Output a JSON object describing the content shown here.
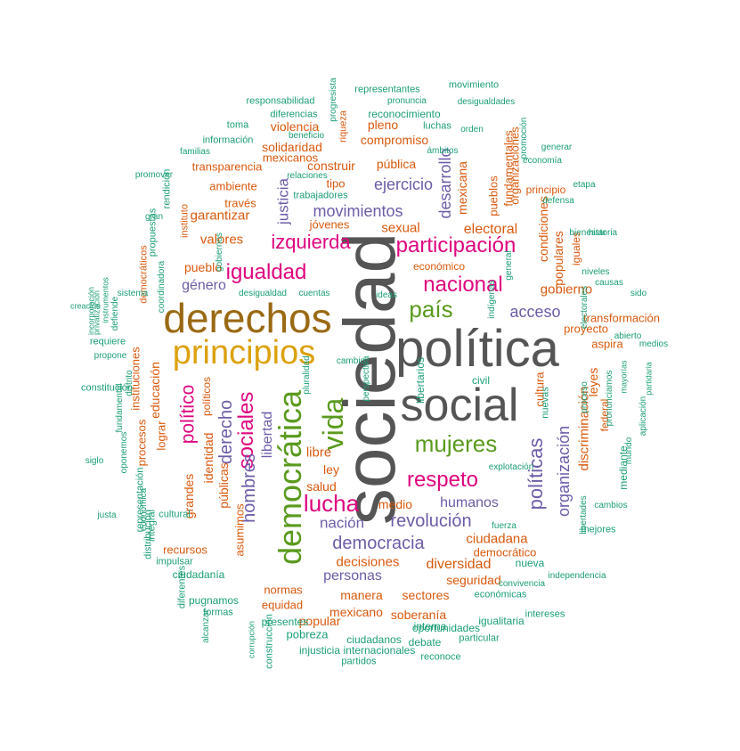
{
  "palette": {
    "dark": "#555555",
    "brown": "#9a6914",
    "gold": "#dca10d",
    "green": "#5a9a1e",
    "magenta": "#df057f",
    "purple": "#6e5ca8",
    "orange": "#d9590d",
    "teal": "#1b9e77"
  },
  "words": [
    {
      "t": "sociedad",
      "c": "dark",
      "r": 1
    },
    {
      "t": "política",
      "c": "dark",
      "r": 0
    },
    {
      "t": "social",
      "c": "dark",
      "r": 0
    },
    {
      "t": "derechos",
      "c": "brown",
      "r": 0
    },
    {
      "t": "principios",
      "c": "gold",
      "r": 0
    },
    {
      "t": "democrática",
      "c": "green",
      "r": 1
    },
    {
      "t": "vida",
      "c": "green",
      "r": 1
    },
    {
      "t": "mujeres",
      "c": "green",
      "r": 0
    },
    {
      "t": "país",
      "c": "green",
      "r": 0
    },
    {
      "t": "nacional",
      "c": "magenta",
      "r": 0
    },
    {
      "t": "igualdad",
      "c": "magenta",
      "r": 0
    },
    {
      "t": "izquierda",
      "c": "magenta",
      "r": 0
    },
    {
      "t": "participación",
      "c": "magenta",
      "r": 0
    },
    {
      "t": "respeto",
      "c": "magenta",
      "r": 0
    },
    {
      "t": "lucha",
      "c": "magenta",
      "r": 0
    },
    {
      "t": "sociales",
      "c": "magenta",
      "r": 1
    },
    {
      "t": "político",
      "c": "magenta",
      "r": 1
    },
    {
      "t": "políticas",
      "c": "purple",
      "r": 1
    },
    {
      "t": "revolución",
      "c": "purple",
      "r": 0
    },
    {
      "t": "democracia",
      "c": "purple",
      "r": 0
    },
    {
      "t": "derecho",
      "c": "purple",
      "r": 1
    },
    {
      "t": "hombres",
      "c": "purple",
      "r": 1
    },
    {
      "t": "movimientos",
      "c": "purple",
      "r": 0
    },
    {
      "t": "ejercicio",
      "c": "purple",
      "r": 0
    },
    {
      "t": "desarrollo",
      "c": "purple",
      "r": 1
    },
    {
      "t": "justicia",
      "c": "purple",
      "r": 1
    },
    {
      "t": "acceso",
      "c": "purple",
      "r": 0
    },
    {
      "t": "género",
      "c": "purple",
      "r": 0
    },
    {
      "t": "nación",
      "c": "purple",
      "r": 0
    },
    {
      "t": "humanos",
      "c": "purple",
      "r": 0
    },
    {
      "t": "personas",
      "c": "purple",
      "r": 0
    },
    {
      "t": "organización",
      "c": "purple",
      "r": 1
    },
    {
      "t": "libertad",
      "c": "purple",
      "r": 1
    },
    {
      "t": "diversidad",
      "c": "orange",
      "r": 0
    },
    {
      "t": "decisiones",
      "c": "orange",
      "r": 0
    },
    {
      "t": "ciudadana",
      "c": "orange",
      "r": 0
    },
    {
      "t": "discriminación",
      "c": "orange",
      "r": 1
    },
    {
      "t": "gobierno",
      "c": "orange",
      "r": 0
    },
    {
      "t": "electoral",
      "c": "orange",
      "r": 0
    },
    {
      "t": "sexual",
      "c": "orange",
      "r": 0
    },
    {
      "t": "garantizar",
      "c": "orange",
      "r": 0
    },
    {
      "t": "valores",
      "c": "orange",
      "r": 0
    },
    {
      "t": "pueblo",
      "c": "orange",
      "r": 0
    },
    {
      "t": "educación",
      "c": "orange",
      "r": 1
    },
    {
      "t": "públicas",
      "c": "orange",
      "r": 1
    },
    {
      "t": "identidad",
      "c": "orange",
      "r": 1
    },
    {
      "t": "grandes",
      "c": "orange",
      "r": 1
    },
    {
      "t": "libre",
      "c": "orange",
      "r": 0
    },
    {
      "t": "ley",
      "c": "orange",
      "r": 0
    },
    {
      "t": "salud",
      "c": "orange",
      "r": 0
    },
    {
      "t": "medio",
      "c": "orange",
      "r": 0
    },
    {
      "t": "seguridad",
      "c": "orange",
      "r": 0
    },
    {
      "t": "manera",
      "c": "orange",
      "r": 0
    },
    {
      "t": "sectores",
      "c": "orange",
      "r": 0
    },
    {
      "t": "normas",
      "c": "orange",
      "r": 0
    },
    {
      "t": "soberanía",
      "c": "orange",
      "r": 0
    },
    {
      "t": "mexicano",
      "c": "orange",
      "r": 0
    },
    {
      "t": "popular",
      "c": "orange",
      "r": 0
    },
    {
      "t": "equidad",
      "c": "orange",
      "r": 0
    },
    {
      "t": "democrático",
      "c": "orange",
      "r": 0
    },
    {
      "t": "construir",
      "c": "orange",
      "r": 0
    },
    {
      "t": "pública",
      "c": "orange",
      "r": 0
    },
    {
      "t": "compromiso",
      "c": "orange",
      "r": 0
    },
    {
      "t": "pleno",
      "c": "orange",
      "r": 0
    },
    {
      "t": "solidaridad",
      "c": "orange",
      "r": 0
    },
    {
      "t": "violencia",
      "c": "orange",
      "r": 0
    },
    {
      "t": "mexicanos",
      "c": "orange",
      "r": 0
    },
    {
      "t": "transparencia",
      "c": "orange",
      "r": 0
    },
    {
      "t": "ambiente",
      "c": "orange",
      "r": 0
    },
    {
      "t": "través",
      "c": "orange",
      "r": 0
    },
    {
      "t": "jóvenes",
      "c": "orange",
      "r": 0
    },
    {
      "t": "tipo",
      "c": "orange",
      "r": 0
    },
    {
      "t": "mexicana",
      "c": "orange",
      "r": 1
    },
    {
      "t": "pueblos",
      "c": "orange",
      "r": 1
    },
    {
      "t": "fundamentales",
      "c": "orange",
      "r": 1
    },
    {
      "t": "organizaciones",
      "c": "orange",
      "r": 1
    },
    {
      "t": "condiciones",
      "c": "orange",
      "r": 1
    },
    {
      "t": "populares",
      "c": "orange",
      "r": 1
    },
    {
      "t": "iguales",
      "c": "orange",
      "r": 1
    },
    {
      "t": "principio",
      "c": "orange",
      "r": 0
    },
    {
      "t": "económico",
      "c": "orange",
      "r": 0
    },
    {
      "t": "proyecto",
      "c": "orange",
      "r": 0
    },
    {
      "t": "transformación",
      "c": "orange",
      "r": 0
    },
    {
      "t": "aspira",
      "c": "orange",
      "r": 0
    },
    {
      "t": "leyes",
      "c": "orange",
      "r": 1
    },
    {
      "t": "federal",
      "c": "orange",
      "r": 1
    },
    {
      "t": "cultura",
      "c": "orange",
      "r": 1
    },
    {
      "t": "lograr",
      "c": "orange",
      "r": 1
    },
    {
      "t": "procesos",
      "c": "orange",
      "r": 1
    },
    {
      "t": "instituciones",
      "c": "orange",
      "r": 1
    },
    {
      "t": "asumimos",
      "c": "orange",
      "r": 1
    },
    {
      "t": "recursos",
      "c": "orange",
      "r": 0
    },
    {
      "t": "riqueza",
      "c": "orange",
      "r": 1
    },
    {
      "t": "políticos",
      "c": "orange",
      "r": 1
    },
    {
      "t": "instituto",
      "c": "orange",
      "r": 1
    },
    {
      "t": "democráticos",
      "c": "orange",
      "r": 1
    },
    {
      "t": "nuevas",
      "c": "teal",
      "r": 1
    },
    {
      "t": "movimiento",
      "c": "teal",
      "r": 0
    },
    {
      "t": "representantes",
      "c": "teal",
      "r": 0
    },
    {
      "t": "responsabilidad",
      "c": "teal",
      "r": 0
    },
    {
      "t": "progresista",
      "c": "teal",
      "r": 1
    },
    {
      "t": "pronuncia",
      "c": "teal",
      "r": 0
    },
    {
      "t": "desigualdades",
      "c": "teal",
      "r": 0
    },
    {
      "t": "diferencias",
      "c": "teal",
      "r": 0
    },
    {
      "t": "reconocimiento",
      "c": "teal",
      "r": 0
    },
    {
      "t": "beneficio",
      "c": "teal",
      "r": 0
    },
    {
      "t": "toma",
      "c": "teal",
      "r": 0
    },
    {
      "t": "luchas",
      "c": "teal",
      "r": 0
    },
    {
      "t": "orden",
      "c": "teal",
      "r": 0
    },
    {
      "t": "promoción",
      "c": "teal",
      "r": 1
    },
    {
      "t": "información",
      "c": "teal",
      "r": 0
    },
    {
      "t": "ámbitos",
      "c": "teal",
      "r": 0
    },
    {
      "t": "generar",
      "c": "teal",
      "r": 0
    },
    {
      "t": "familias",
      "c": "teal",
      "r": 0
    },
    {
      "t": "economía",
      "c": "teal",
      "r": 0
    },
    {
      "t": "promover",
      "c": "teal",
      "r": 0
    },
    {
      "t": "relaciones",
      "c": "teal",
      "r": 0
    },
    {
      "t": "etapa",
      "c": "teal",
      "r": 0
    },
    {
      "t": "rendición",
      "c": "teal",
      "r": 1
    },
    {
      "t": "trabajadores",
      "c": "teal",
      "r": 0
    },
    {
      "t": "defensa",
      "c": "teal",
      "r": 0
    },
    {
      "t": "gran",
      "c": "teal",
      "r": 0
    },
    {
      "t": "historia",
      "c": "teal",
      "r": 0
    },
    {
      "t": "propuestas",
      "c": "teal",
      "r": 1
    },
    {
      "t": "bienestar",
      "c": "teal",
      "r": 0
    },
    {
      "t": "gobiernos",
      "c": "teal",
      "r": 1
    },
    {
      "t": "niveles",
      "c": "teal",
      "r": 0
    },
    {
      "t": "creación",
      "c": "teal",
      "r": 0
    },
    {
      "t": "incorporación",
      "c": "teal",
      "r": 1
    },
    {
      "t": "privatización",
      "c": "teal",
      "r": 1
    },
    {
      "t": "instrumentos",
      "c": "teal",
      "r": 1
    },
    {
      "t": "coordinadora",
      "c": "teal",
      "r": 1
    },
    {
      "t": "general",
      "c": "teal",
      "r": 1
    },
    {
      "t": "causas",
      "c": "teal",
      "r": 0
    },
    {
      "t": "sido",
      "c": "teal",
      "r": 0
    },
    {
      "t": "desigualdad",
      "c": "teal",
      "r": 0
    },
    {
      "t": "cuentas",
      "c": "teal",
      "r": 0
    },
    {
      "t": "ideas",
      "c": "teal",
      "r": 0
    },
    {
      "t": "indígenas",
      "c": "teal",
      "r": 1
    },
    {
      "t": "sistema",
      "c": "teal",
      "r": 0
    },
    {
      "t": "defiende",
      "c": "teal",
      "r": 1
    },
    {
      "t": "electorales",
      "c": "teal",
      "r": 1
    },
    {
      "t": "abierto",
      "c": "teal",
      "r": 0
    },
    {
      "t": "requiere",
      "c": "teal",
      "r": 0
    },
    {
      "t": "medios",
      "c": "teal",
      "r": 0
    },
    {
      "t": "propone",
      "c": "teal",
      "r": 0
    },
    {
      "t": "cambio",
      "c": "teal",
      "r": 0
    },
    {
      "t": "perspectiva",
      "c": "teal",
      "r": 1
    },
    {
      "t": "distrito",
      "c": "teal",
      "r": 1
    },
    {
      "t": "fundamental",
      "c": "teal",
      "r": 1
    },
    {
      "t": "mayorías",
      "c": "teal",
      "r": 1
    },
    {
      "t": "partidaria",
      "c": "teal",
      "r": 1
    },
    {
      "t": "pluralidad",
      "c": "teal",
      "r": 1
    },
    {
      "t": "libertarios",
      "c": "teal",
      "r": 1
    },
    {
      "t": "civil",
      "c": "teal",
      "r": 0
    },
    {
      "t": "constitución",
      "c": "teal",
      "r": 0
    },
    {
      "t": "pronunciamos",
      "c": "teal",
      "r": 1
    },
    {
      "t": "proceso",
      "c": "teal",
      "r": 1
    },
    {
      "t": "aplicación",
      "c": "teal",
      "r": 1
    },
    {
      "t": "mundo",
      "c": "teal",
      "r": 1
    },
    {
      "t": "siglo",
      "c": "teal",
      "r": 0
    },
    {
      "t": "oponemos",
      "c": "teal",
      "r": 1
    },
    {
      "t": "mediante",
      "c": "teal",
      "r": 1
    },
    {
      "t": "explotación",
      "c": "teal",
      "r": 0
    },
    {
      "t": "justa",
      "c": "teal",
      "r": 0
    },
    {
      "t": "representación",
      "c": "teal",
      "r": 1
    },
    {
      "t": "cultural",
      "c": "teal",
      "r": 0
    },
    {
      "t": "económica",
      "c": "teal",
      "r": 1
    },
    {
      "t": "cambios",
      "c": "teal",
      "r": 0
    },
    {
      "t": "libertades",
      "c": "teal",
      "r": 1
    },
    {
      "t": "integral",
      "c": "teal",
      "r": 1
    },
    {
      "t": "fuerza",
      "c": "teal",
      "r": 0
    },
    {
      "t": "mejores",
      "c": "teal",
      "r": 0
    },
    {
      "t": "distribución",
      "c": "teal",
      "r": 1
    },
    {
      "t": "nueva",
      "c": "teal",
      "r": 0
    },
    {
      "t": "impulsar",
      "c": "teal",
      "r": 0
    },
    {
      "t": "ciudadanía",
      "c": "teal",
      "r": 0
    },
    {
      "t": "independencia",
      "c": "teal",
      "r": 0
    },
    {
      "t": "diferentes",
      "c": "teal",
      "r": 1
    },
    {
      "t": "económicas",
      "c": "teal",
      "r": 0
    },
    {
      "t": "pugnamos",
      "c": "teal",
      "r": 0
    },
    {
      "t": "convivencia",
      "c": "teal",
      "r": 0
    },
    {
      "t": "formas",
      "c": "teal",
      "r": 0
    },
    {
      "t": "intereses",
      "c": "teal",
      "r": 0
    },
    {
      "t": "corrupción",
      "c": "teal",
      "r": 1
    },
    {
      "t": "construcción",
      "c": "teal",
      "r": 1
    },
    {
      "t": "alcanzar",
      "c": "teal",
      "r": 1
    },
    {
      "t": "presentes",
      "c": "teal",
      "r": 0
    },
    {
      "t": "interna",
      "c": "teal",
      "r": 0
    },
    {
      "t": "igualitaria",
      "c": "teal",
      "r": 0
    },
    {
      "t": "pobreza",
      "c": "teal",
      "r": 0
    },
    {
      "t": "oportunidades",
      "c": "teal",
      "r": 0
    },
    {
      "t": "ciudadanos",
      "c": "teal",
      "r": 0
    },
    {
      "t": "debate",
      "c": "teal",
      "r": 0
    },
    {
      "t": "particular",
      "c": "teal",
      "r": 0
    },
    {
      "t": "injusticia",
      "c": "teal",
      "r": 0
    },
    {
      "t": "internacionales",
      "c": "teal",
      "r": 0
    },
    {
      "t": "partidos",
      "c": "teal",
      "r": 0
    },
    {
      "t": "reconoce",
      "c": "teal",
      "r": 0
    },
    {
      "t": "comunidades",
      "c": "teal",
      "r": 0
    }
  ]
}
